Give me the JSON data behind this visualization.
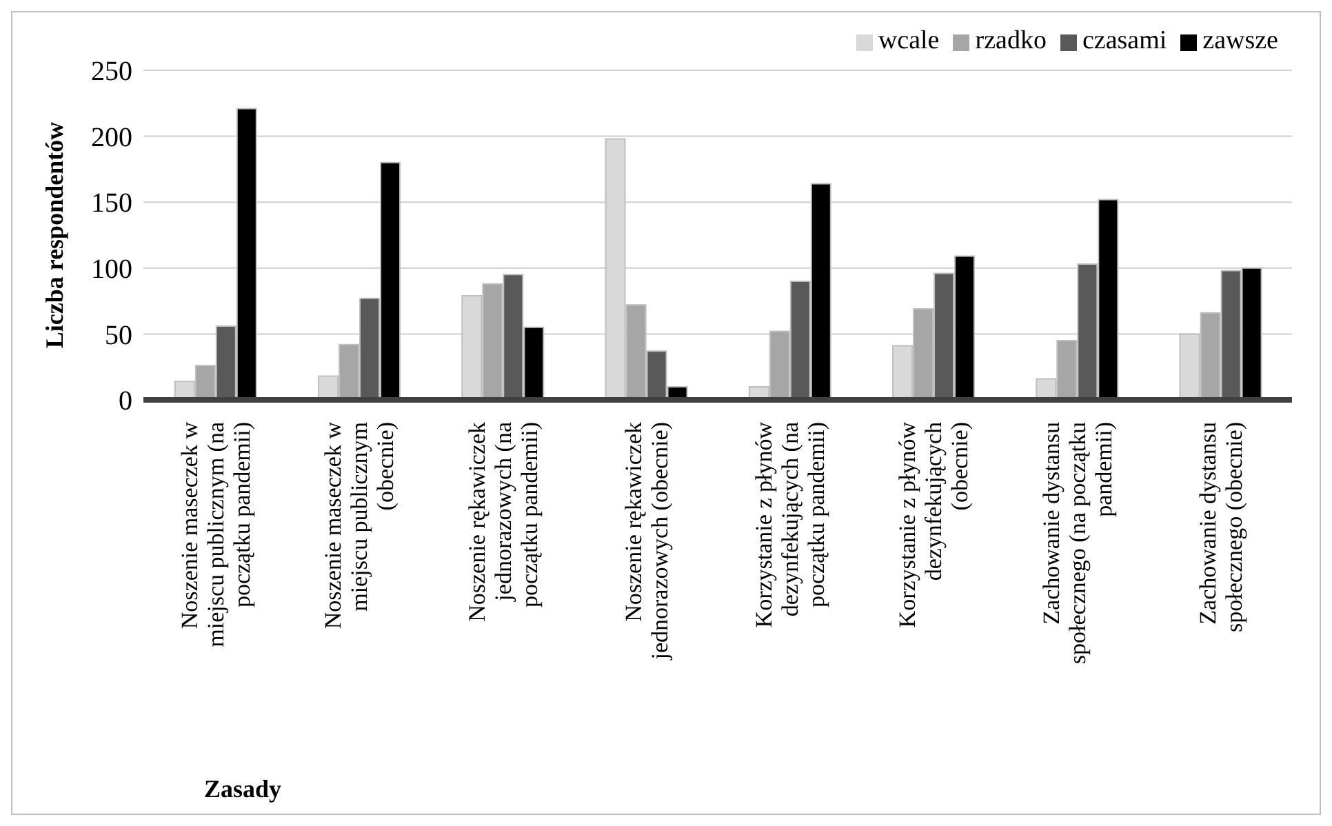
{
  "chart_data": {
    "type": "bar",
    "xlabel": "Zasady",
    "ylabel": "Liczba respondentów",
    "categories": [
      "Noszenie maseczek w miejscu publicznym (na początku pandemii)",
      "Noszenie maseczek w miejscu publicznym (obecnie)",
      "Noszenie rękawiczek jednorazowych (na początku pandemii)",
      "Noszenie rękawiczek jednorazowych (obecnie)",
      "Korzystanie z płynów dezynfekujących (na początku pandemii)",
      "Korzystanie z płynów dezynfekujących (obecnie)",
      "Zachowanie dystansu społecznego (na początku pandemii)",
      "Zachowanie dystansu społecznego (obecnie)"
    ],
    "series": [
      {
        "name": "wcale",
        "color": "#d9d9d9",
        "values": [
          14,
          18,
          79,
          198,
          10,
          41,
          16,
          50
        ]
      },
      {
        "name": "rzadko",
        "color": "#a6a6a6",
        "values": [
          26,
          42,
          88,
          72,
          52,
          69,
          45,
          66
        ]
      },
      {
        "name": "czasami",
        "color": "#595959",
        "values": [
          56,
          77,
          95,
          37,
          90,
          96,
          103,
          98
        ]
      },
      {
        "name": "zawsze",
        "color": "#000000",
        "values": [
          221,
          180,
          55,
          10,
          164,
          109,
          152,
          100
        ]
      }
    ],
    "ylim": [
      0,
      250
    ],
    "yticks": [
      0,
      50,
      100,
      150,
      200,
      250
    ],
    "grid": "y",
    "legend": "top right"
  }
}
